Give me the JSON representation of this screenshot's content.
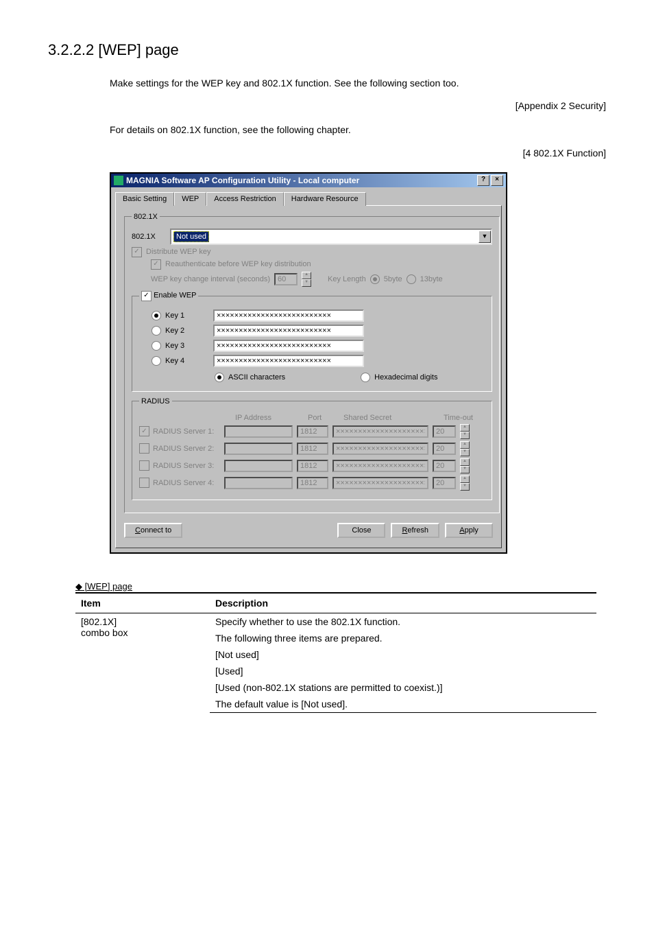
{
  "page": {
    "heading": "3.2.2.2  [WEP] page",
    "intro1": "Make settings for the WEP key and 802.1X function. See the following section too.",
    "ref1": "[Appendix 2 Security]",
    "intro2": "For details on 802.1X function, see the following chapter.",
    "ref2": "[4 802.1X Function]",
    "table_caption": "◆ [WEP] page"
  },
  "window": {
    "title": "MAGNIA Software AP Configuration Utility - Local computer",
    "tabs": [
      "Basic Setting",
      "WEP",
      "Access Restriction",
      "Hardware Resource"
    ],
    "active_tab_index": 1
  },
  "sec_8021x": {
    "legend": "802.1X",
    "label": "802.1X",
    "selected": "Not used",
    "distribute_label": "Distribute WEP key",
    "reauth_label": "Reauthenticate before WEP key distribution",
    "interval_label": "WEP key change interval (seconds)",
    "interval_value": "60",
    "keylen_label": "Key Length",
    "keylen_opt1": "5byte",
    "keylen_opt2": "13byte"
  },
  "sec_wep": {
    "enable_label": "Enable WEP",
    "keys": [
      {
        "label": "Key 1",
        "value": "××××××××××××××××××××××××××",
        "selected": true
      },
      {
        "label": "Key 2",
        "value": "××××××××××××××××××××××××××",
        "selected": false
      },
      {
        "label": "Key 3",
        "value": "××××××××××××××××××××××××××",
        "selected": false
      },
      {
        "label": "Key 4",
        "value": "××××××××××××××××××××××××××",
        "selected": false
      }
    ],
    "ascii_label": "ASCII characters",
    "hex_label": "Hexadecimal digits"
  },
  "sec_radius": {
    "legend": "RADIUS",
    "headers": [
      "IP Address",
      "Port",
      "Shared Secret",
      "Time-out"
    ],
    "rows": [
      {
        "label": "RADIUS Server 1:",
        "checked": true,
        "ip": "",
        "port": "1812",
        "secret": "×××××××××××××××××××××",
        "timeout": "20"
      },
      {
        "label": "RADIUS Server 2:",
        "checked": false,
        "ip": "",
        "port": "1812",
        "secret": "×××××××××××××××××××××",
        "timeout": "20"
      },
      {
        "label": "RADIUS Server 3:",
        "checked": false,
        "ip": "",
        "port": "1812",
        "secret": "×××××××××××××××××××××",
        "timeout": "20"
      },
      {
        "label": "RADIUS Server 4:",
        "checked": false,
        "ip": "",
        "port": "1812",
        "secret": "×××××××××××××××××××××",
        "timeout": "20"
      }
    ]
  },
  "buttons": {
    "connect": "Connect to",
    "close": "Close",
    "refresh": "Refresh",
    "apply": "Apply"
  },
  "desc_table": {
    "col_item": "Item",
    "col_desc": "Description",
    "item": "[802.1X]\ncombo box",
    "lines": [
      "Specify whether to use the 802.1X function.",
      "The following three items are prepared.",
      "[Not used]",
      "[Used]",
      "[Used (non-802.1X stations are permitted to coexist.)]",
      "The default value is [Not used]."
    ]
  }
}
